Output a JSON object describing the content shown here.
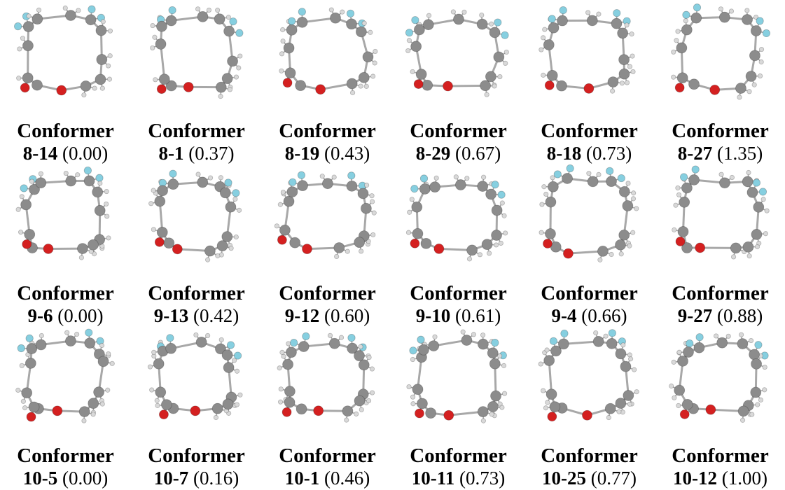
{
  "panels": [
    {
      "heading": "Conformer",
      "id": "8-14",
      "energy": "(0.00)",
      "rings": 8
    },
    {
      "heading": "Conformer",
      "id": "8-1",
      "energy": "(0.37)",
      "rings": 8
    },
    {
      "heading": "Conformer",
      "id": "8-19",
      "energy": "(0.43)",
      "rings": 8
    },
    {
      "heading": "Conformer",
      "id": "8-29",
      "energy": "(0.67)",
      "rings": 8
    },
    {
      "heading": "Conformer",
      "id": "8-18",
      "energy": "(0.73)",
      "rings": 8
    },
    {
      "heading": "Conformer",
      "id": "8-27",
      "energy": "(1.35)",
      "rings": 8
    },
    {
      "heading": "Conformer",
      "id": "9-6",
      "energy": "(0.00)",
      "rings": 9
    },
    {
      "heading": "Conformer",
      "id": "9-13",
      "energy": "(0.42)",
      "rings": 9
    },
    {
      "heading": "Conformer",
      "id": "9-12",
      "energy": "(0.60)",
      "rings": 9
    },
    {
      "heading": "Conformer",
      "id": "9-10",
      "energy": "(0.61)",
      "rings": 9
    },
    {
      "heading": "Conformer",
      "id": "9-4",
      "energy": "(0.66)",
      "rings": 9
    },
    {
      "heading": "Conformer",
      "id": "9-27",
      "energy": "(0.88)",
      "rings": 9
    },
    {
      "heading": "Conformer",
      "id": "10-5",
      "energy": "(0.00)",
      "rings": 10
    },
    {
      "heading": "Conformer",
      "id": "10-7",
      "energy": "(0.16)",
      "rings": 10
    },
    {
      "heading": "Conformer",
      "id": "10-1",
      "energy": "(0.46)",
      "rings": 10
    },
    {
      "heading": "Conformer",
      "id": "10-11",
      "energy": "(0.73)",
      "rings": 10
    },
    {
      "heading": "Conformer",
      "id": "10-25",
      "energy": "(0.77)",
      "rings": 10
    },
    {
      "heading": "Conformer",
      "id": "10-12",
      "energy": "(1.00)",
      "rings": 10
    }
  ],
  "colors": {
    "carbon": "#8c8c8c",
    "hydrogen": "#d9d9d9",
    "oxygen": "#d42020",
    "fluorine": "#86cfe0",
    "bond": "#a8a8a8"
  }
}
